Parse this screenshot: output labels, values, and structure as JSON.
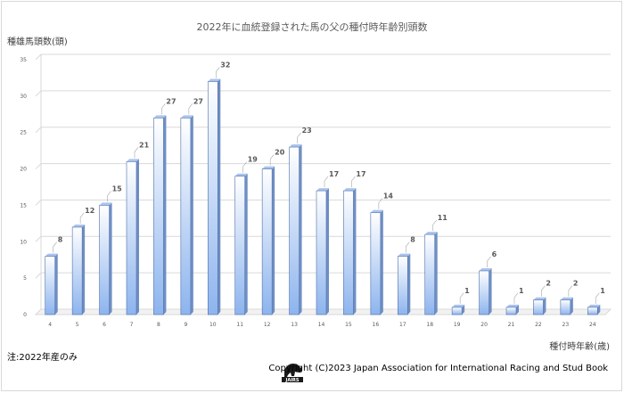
{
  "chart_data": {
    "type": "bar",
    "title": "2022年に血統登録された馬の父の種付時年齢別頭数",
    "ylabel": "種雄馬頭数(頭)",
    "xlabel": "種付時年齢(歳)",
    "ylim": [
      0,
      35
    ],
    "yticks": [
      0,
      5,
      10,
      15,
      20,
      25,
      30,
      35
    ],
    "categories": [
      "4",
      "5",
      "6",
      "7",
      "8",
      "9",
      "10",
      "11",
      "12",
      "13",
      "14",
      "15",
      "16",
      "17",
      "18",
      "19",
      "20",
      "21",
      "22",
      "23",
      "24"
    ],
    "values": [
      8,
      12,
      15,
      21,
      27,
      27,
      32,
      19,
      20,
      23,
      17,
      17,
      14,
      8,
      11,
      1,
      6,
      1,
      2,
      2,
      1
    ],
    "grid": true,
    "legend": "none",
    "colors": {
      "bar_top": "#ffffff",
      "bar_bottom": "#8db4ee",
      "bar_side": "#6f8fc4",
      "bar_edge": "#4f6fa8",
      "grid": "#d9d9d9"
    }
  },
  "footer": {
    "note": "注:2022年産のみ",
    "copyright": "Copyright (C)2023  Japan Association for International Racing and Stud Book",
    "logo_text": "JAIRS"
  }
}
